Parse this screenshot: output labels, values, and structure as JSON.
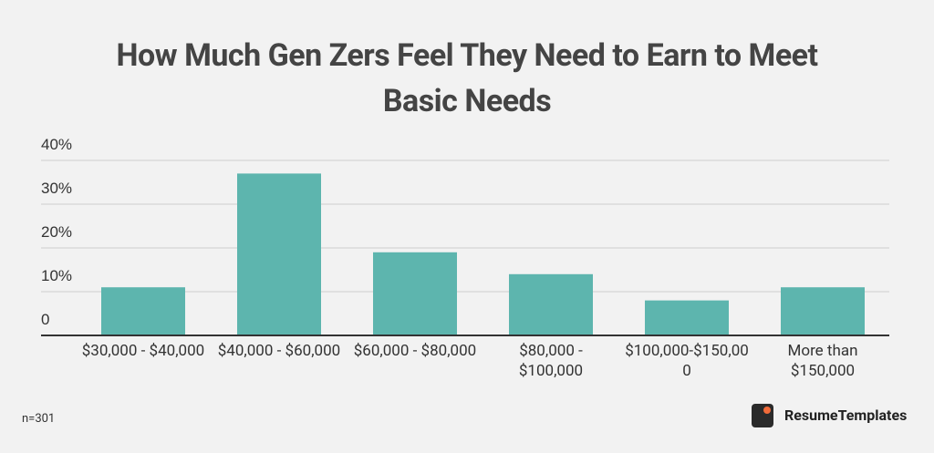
{
  "chart_data": {
    "type": "bar",
    "title": "How Much Gen Zers Feel They Need to Earn to Meet Basic Needs",
    "categories": [
      "$30,000 - $40,000",
      "$40,000 - $60,000",
      "$60,000 - $80,000",
      "$80,000 - $100,000",
      "$100,000-$150,000",
      "More than $150,000"
    ],
    "values": [
      11,
      37,
      19,
      14,
      8,
      11
    ],
    "color": "#5db5ae",
    "ylim": [
      0,
      40
    ],
    "yticks": [
      0,
      {
        "value": 10,
        "label": "10%"
      },
      {
        "value": 20,
        "label": "20%"
      },
      {
        "value": 30,
        "label": "30%"
      },
      {
        "value": 40,
        "label": "40%"
      }
    ],
    "grid": true,
    "note": "n=301",
    "brand": "ResumeTemplates"
  }
}
